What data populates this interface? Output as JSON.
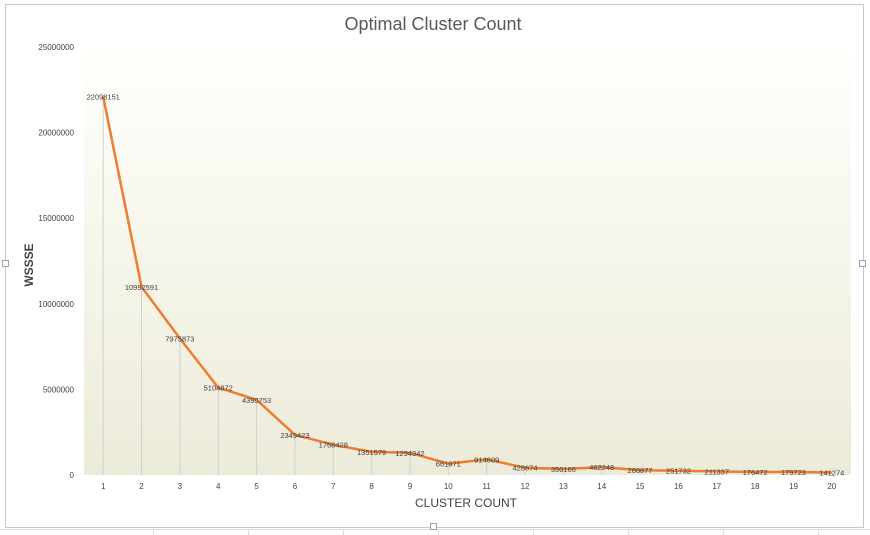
{
  "chart_data": {
    "type": "line",
    "title": "Optimal Cluster Count",
    "xlabel": "CLUSTER COUNT",
    "ylabel": "WSSSE",
    "ylim": [
      0,
      25000000
    ],
    "yticks": [
      "0",
      "5000000",
      "10000000",
      "15000000",
      "20000000",
      "25000000"
    ],
    "categories": [
      "1",
      "2",
      "3",
      "4",
      "5",
      "6",
      "7",
      "8",
      "9",
      "10",
      "11",
      "12",
      "13",
      "14",
      "15",
      "16",
      "17",
      "18",
      "19",
      "20"
    ],
    "values": [
      22098151,
      10992591,
      7975873,
      5104872,
      4390753,
      2349423,
      1768428,
      1351579,
      1294342,
      661971,
      914609,
      428674,
      350166,
      462248,
      280877,
      251732,
      211337,
      176472,
      179723,
      141274
    ],
    "data_labels": [
      "22098151",
      "10992591",
      "7975873",
      "5104872",
      "4390753",
      "2349423",
      "1768428",
      "1351579",
      "1294342",
      "661971",
      "914609",
      "428674",
      "350166",
      "462248",
      "280877",
      "251732",
      "211337",
      "176472",
      "179723",
      "141274"
    ],
    "grid": false,
    "legend": "none",
    "colors": {
      "line": "#ed7d31",
      "drop_line": "#d0d0d0",
      "title": "#595959",
      "text": "#404040",
      "plot_top": "#fffffc",
      "plot_bottom": "#ecebd9"
    }
  }
}
